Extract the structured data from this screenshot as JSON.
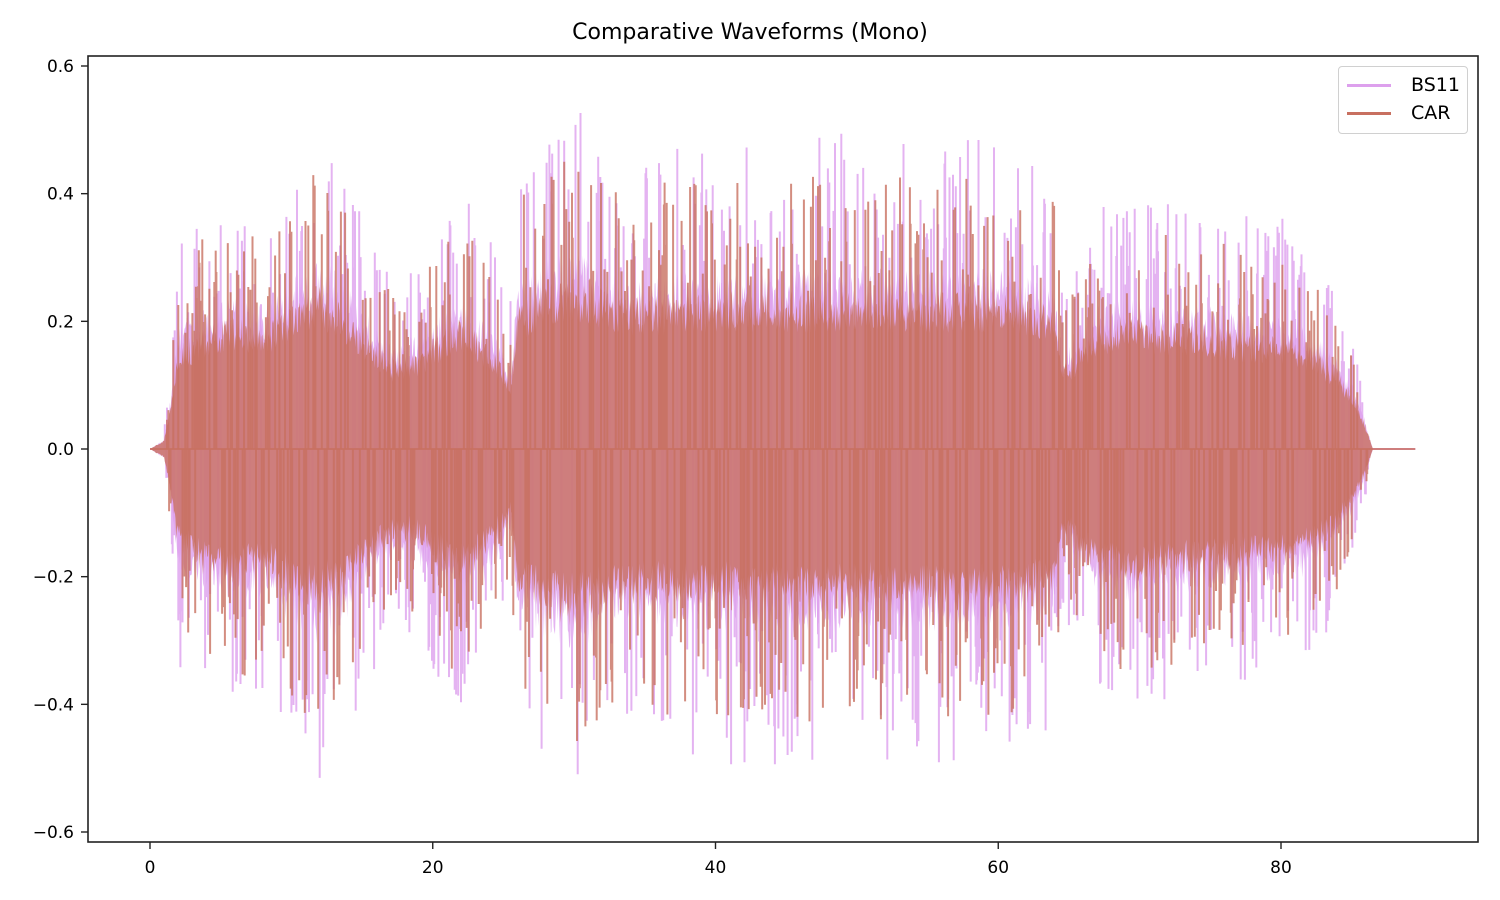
{
  "chart_data": {
    "type": "line",
    "title": "Comparative Waveforms (Mono)",
    "xlabel": "",
    "ylabel": "",
    "xlim": [
      -4.4,
      94.2
    ],
    "ylim": [
      -0.62,
      0.61
    ],
    "x_ticks": [
      0,
      20,
      40,
      60,
      80
    ],
    "x_tick_labels": [
      "0",
      "20",
      "40",
      "60",
      "80"
    ],
    "y_ticks": [
      -0.6,
      -0.4,
      -0.2,
      0.0,
      0.2,
      0.4,
      0.6
    ],
    "y_tick_labels": [
      "−0.6",
      "−0.4",
      "−0.2",
      "0.0",
      "0.2",
      "0.4",
      "0.6"
    ],
    "grid": false,
    "legend_position": "upper right",
    "duration_seconds": 89.5,
    "series": [
      {
        "name": "BS11",
        "color": "#dda0ed",
        "alpha": 0.8,
        "peak_max": 0.56,
        "peak_min": -0.56,
        "envelope": {
          "t": [
            0,
            1,
            1.5,
            2,
            4,
            6,
            8,
            10,
            12,
            13,
            15,
            17,
            19,
            21,
            22,
            24,
            25.5,
            26,
            28,
            30,
            31,
            33,
            35,
            40,
            45,
            50,
            55,
            60,
            62,
            64,
            64.5,
            65,
            67,
            69,
            72,
            75,
            78,
            80,
            82,
            84,
            85,
            86,
            86.5,
            89.5
          ],
          "amp": [
            0,
            0.02,
            0.12,
            0.26,
            0.3,
            0.32,
            0.3,
            0.36,
            0.4,
            0.38,
            0.3,
            0.22,
            0.24,
            0.3,
            0.32,
            0.26,
            0.18,
            0.34,
            0.4,
            0.42,
            0.4,
            0.36,
            0.36,
            0.38,
            0.38,
            0.38,
            0.38,
            0.38,
            0.36,
            0.34,
            0.2,
            0.22,
            0.3,
            0.32,
            0.3,
            0.3,
            0.28,
            0.28,
            0.26,
            0.2,
            0.14,
            0.06,
            0.0,
            0.0
          ]
        }
      },
      {
        "name": "CAR",
        "color": "#c87060",
        "alpha": 0.8,
        "peak_max": 0.45,
        "peak_min": -0.485,
        "envelope": {
          "t": [
            0,
            1,
            1.5,
            2,
            4,
            6,
            8,
            10,
            12,
            13,
            15,
            17,
            19,
            21,
            22,
            24,
            25.5,
            26,
            28,
            30,
            31,
            33,
            35,
            40,
            45,
            50,
            55,
            60,
            62,
            64,
            64.5,
            65,
            67,
            69,
            72,
            75,
            78,
            80,
            82,
            84,
            85,
            86,
            86.5,
            89.5
          ],
          "amp": [
            0,
            0.02,
            0.1,
            0.22,
            0.26,
            0.28,
            0.26,
            0.3,
            0.34,
            0.32,
            0.26,
            0.19,
            0.2,
            0.26,
            0.28,
            0.22,
            0.15,
            0.3,
            0.35,
            0.36,
            0.35,
            0.32,
            0.32,
            0.33,
            0.33,
            0.33,
            0.33,
            0.33,
            0.32,
            0.3,
            0.17,
            0.19,
            0.26,
            0.28,
            0.26,
            0.26,
            0.24,
            0.24,
            0.22,
            0.17,
            0.12,
            0.05,
            0.0,
            0.0
          ]
        }
      }
    ]
  },
  "legend": {
    "items": [
      {
        "label": "BS11",
        "color": "#dda0ed"
      },
      {
        "label": "CAR",
        "color": "#c87060"
      }
    ]
  }
}
